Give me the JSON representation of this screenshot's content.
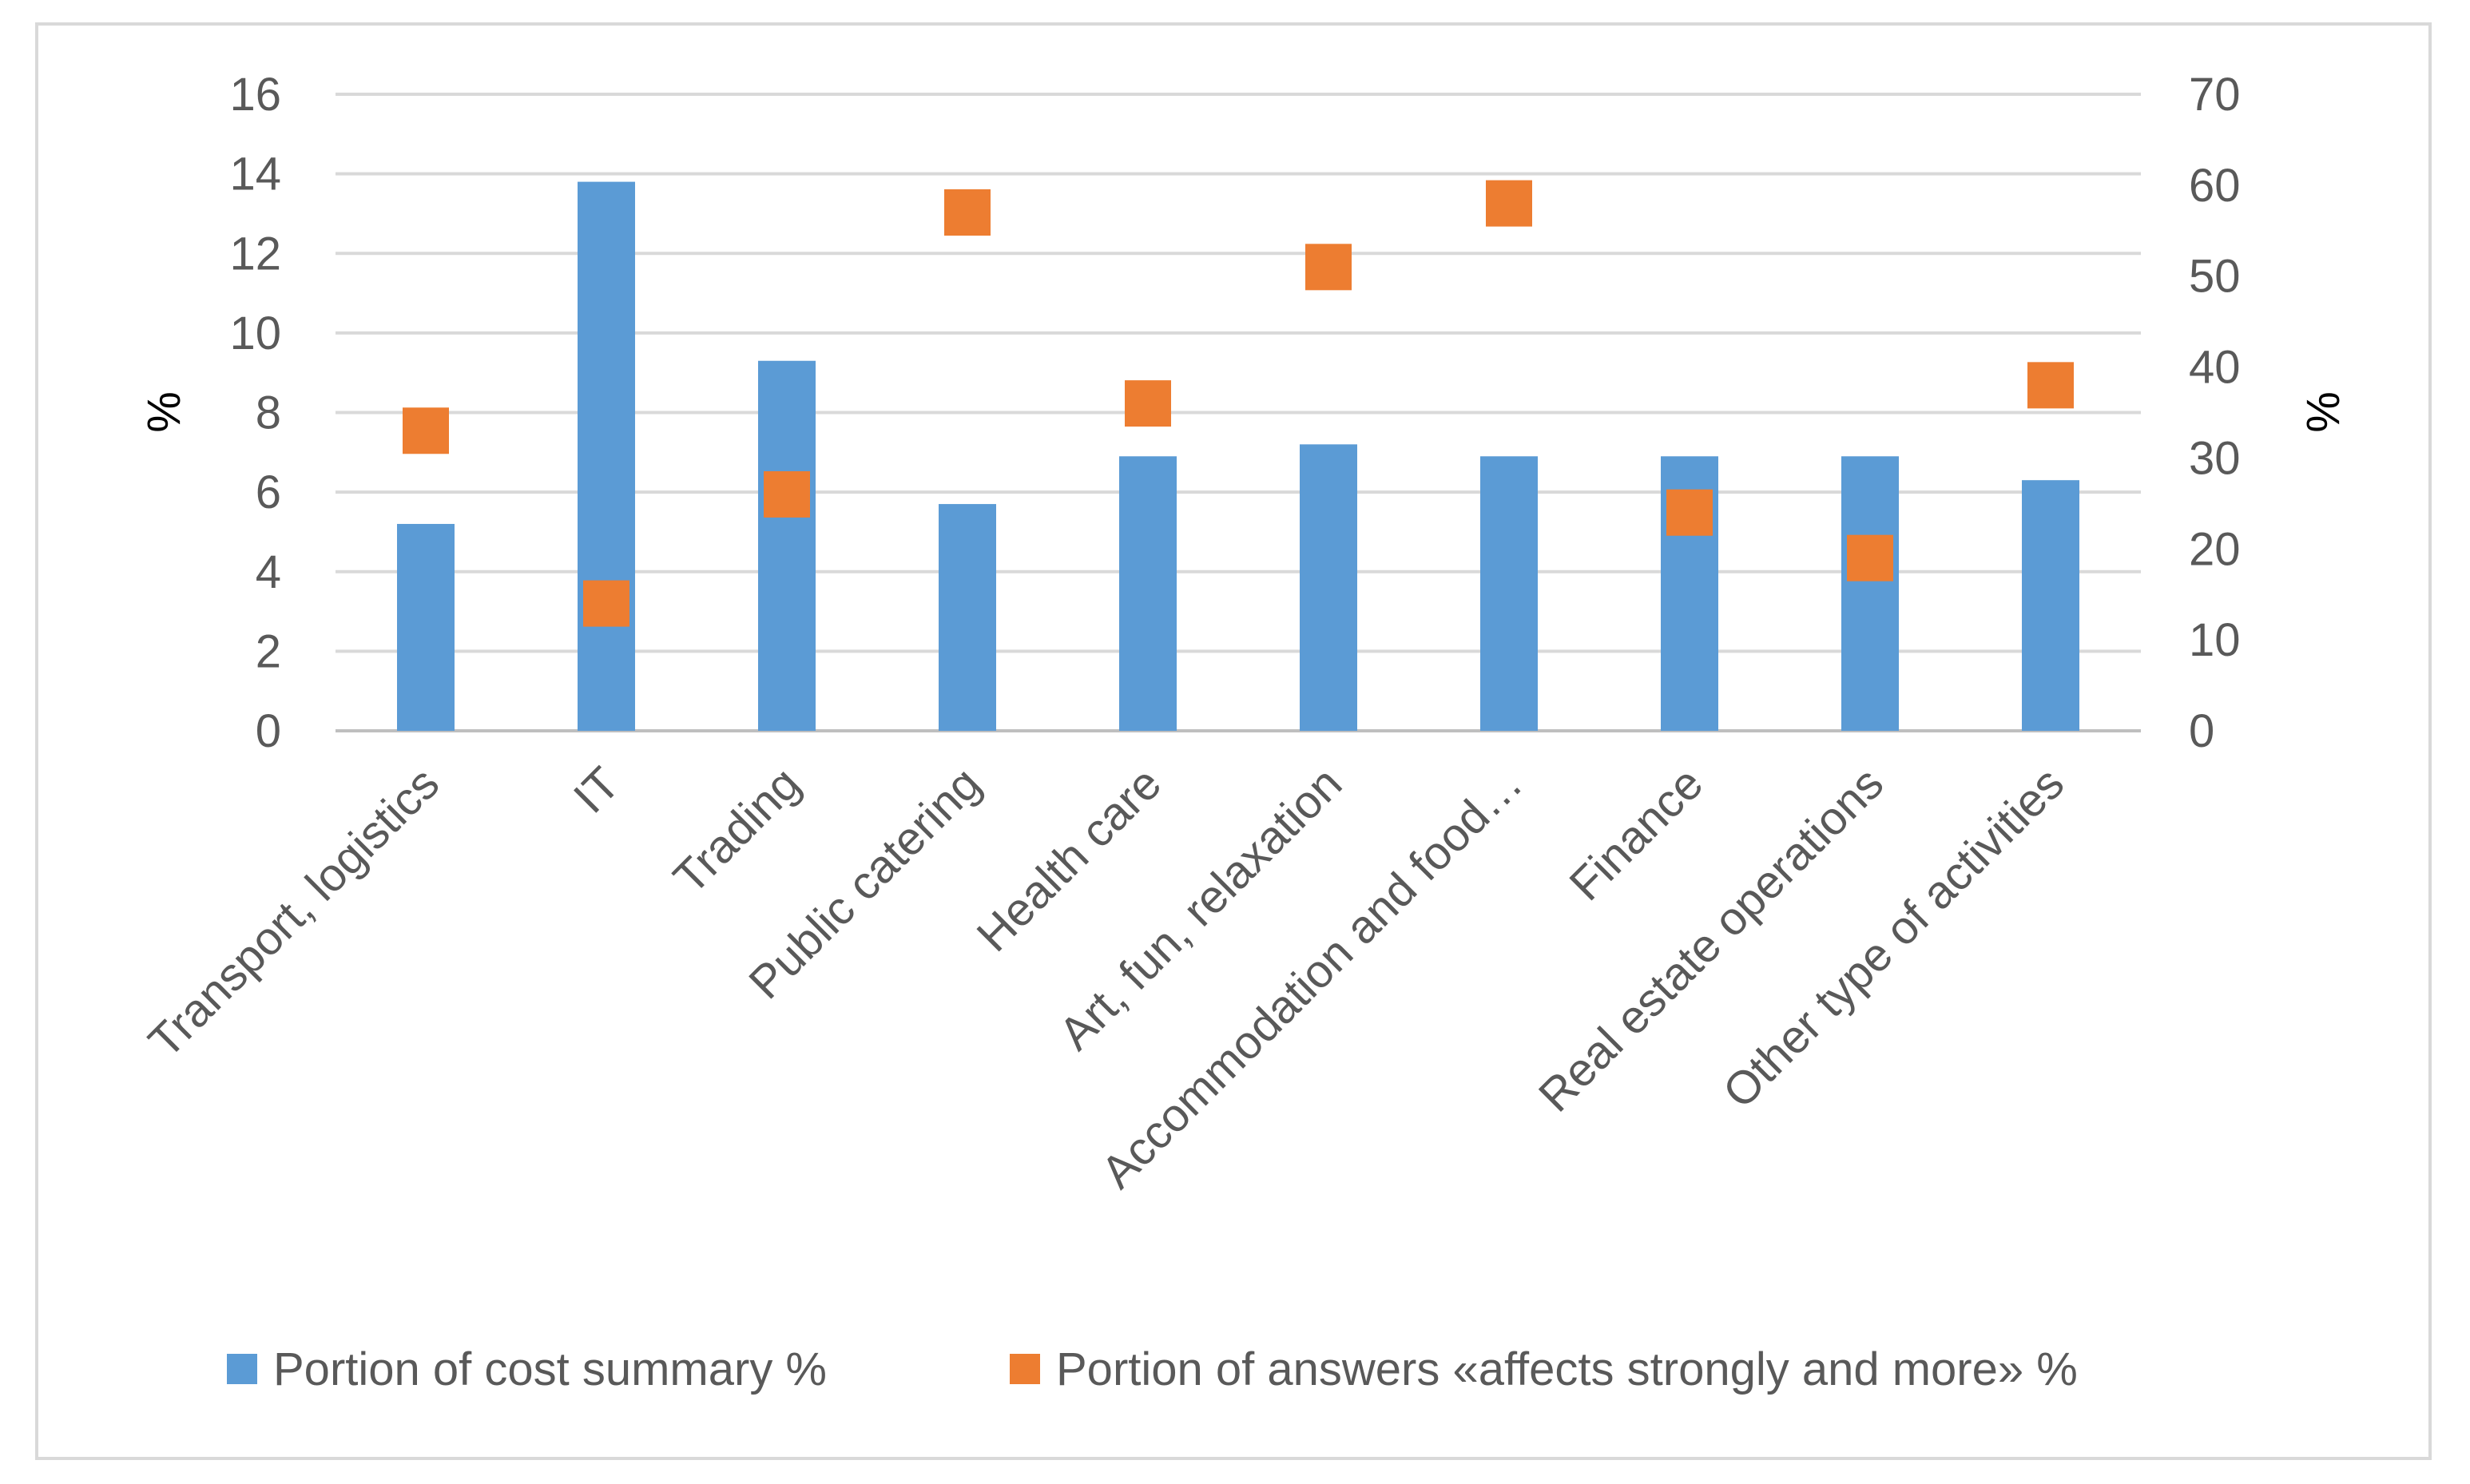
{
  "chart_data": {
    "type": "bar",
    "title": "",
    "categories": [
      "Transport, logistics",
      "IT",
      "Trading",
      "Public catering",
      "Health care",
      "Art, fun, relaxation",
      "Accommodation and food…",
      "Finance",
      "Real estate operations",
      "Other type of activities"
    ],
    "series": [
      {
        "name": "Portion of  cost summary %",
        "type": "bar",
        "axis": "left",
        "color": "#5B9BD5",
        "values": [
          5.2,
          13.8,
          9.3,
          5.7,
          6.9,
          7.2,
          6.9,
          6.9,
          6.9,
          6.3
        ]
      },
      {
        "name": "Portion of answers «affects strongly and more» %",
        "type": "scatter",
        "axis": "right",
        "color": "#ED7D31",
        "values": [
          33,
          14,
          26,
          57,
          36,
          51,
          58,
          24,
          19,
          38
        ]
      }
    ],
    "ylabel": "%",
    "y2label": "%",
    "ylim": [
      0,
      16
    ],
    "y2lim": [
      0,
      70
    ],
    "yticks": [
      "0",
      "2",
      "4",
      "6",
      "8",
      "10",
      "12",
      "14",
      "16"
    ],
    "y2ticks": [
      "0",
      "10",
      "20",
      "30",
      "40",
      "50",
      "60",
      "70"
    ],
    "grid": true,
    "legend": "bottom"
  }
}
